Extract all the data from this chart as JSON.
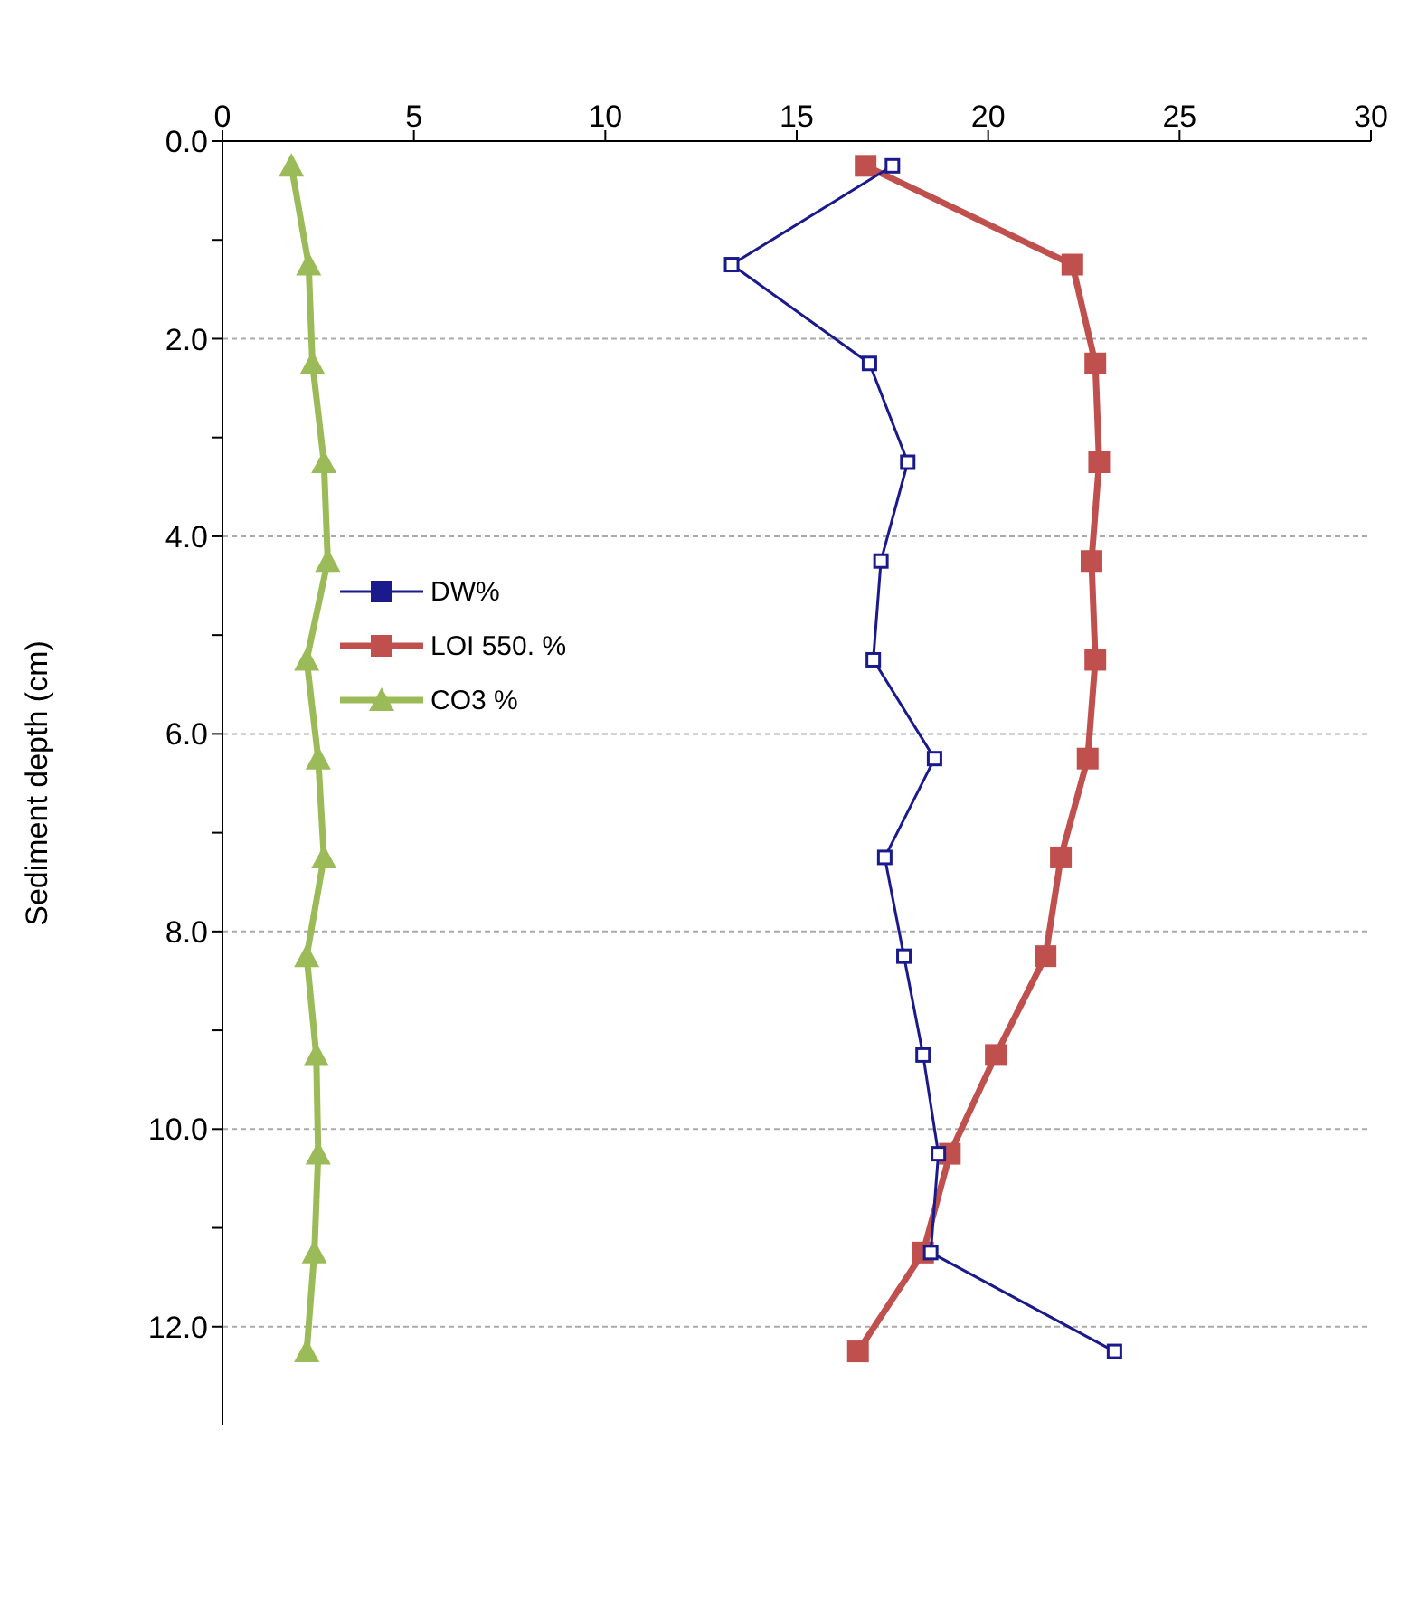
{
  "chart_data": {
    "type": "line",
    "orientation": "horizontal",
    "ylabel": "Sediment depth (cm)",
    "x": [
      0.25,
      1.25,
      2.25,
      3.25,
      4.25,
      5.25,
      6.25,
      7.25,
      8.25,
      9.25,
      10.25,
      11.25,
      12.25
    ],
    "series": [
      {
        "name": "DW%",
        "color": "#1a1a8c",
        "marker": "square",
        "values": [
          17.5,
          13.3,
          16.9,
          17.9,
          17.2,
          17.0,
          18.6,
          17.3,
          17.8,
          18.3,
          18.7,
          18.5,
          23.3
        ]
      },
      {
        "name": "LOI 550. %",
        "color": "#c0504d",
        "marker": "square",
        "values": [
          16.8,
          22.2,
          22.8,
          22.9,
          22.7,
          22.8,
          22.6,
          21.9,
          21.5,
          20.2,
          19.0,
          18.3,
          16.6
        ]
      },
      {
        "name": "CO3 %",
        "color": "#9bbb59",
        "marker": "triangle",
        "values": [
          1.8,
          2.25,
          2.35,
          2.65,
          2.75,
          2.2,
          2.5,
          2.65,
          2.2,
          2.45,
          2.5,
          2.4,
          2.2
        ]
      }
    ],
    "xlim": [
      0,
      30
    ],
    "xticks": [
      0,
      5,
      10,
      15,
      20,
      25,
      30
    ],
    "ylim": [
      13,
      0
    ],
    "yticks": [
      {
        "value": 0,
        "label": "0.0"
      },
      {
        "value": 1,
        "label": null
      },
      {
        "value": 2,
        "label": "2.0"
      },
      {
        "value": 3,
        "label": null
      },
      {
        "value": 4,
        "label": "4.0"
      },
      {
        "value": 5,
        "label": null
      },
      {
        "value": 6,
        "label": "6.0"
      },
      {
        "value": 7,
        "label": null
      },
      {
        "value": 8,
        "label": "8.0"
      },
      {
        "value": 9,
        "label": null
      },
      {
        "value": 10,
        "label": "10.0"
      },
      {
        "value": 11,
        "label": null
      },
      {
        "value": 12,
        "label": "12.0"
      }
    ],
    "grid": "y",
    "legend": "left"
  }
}
